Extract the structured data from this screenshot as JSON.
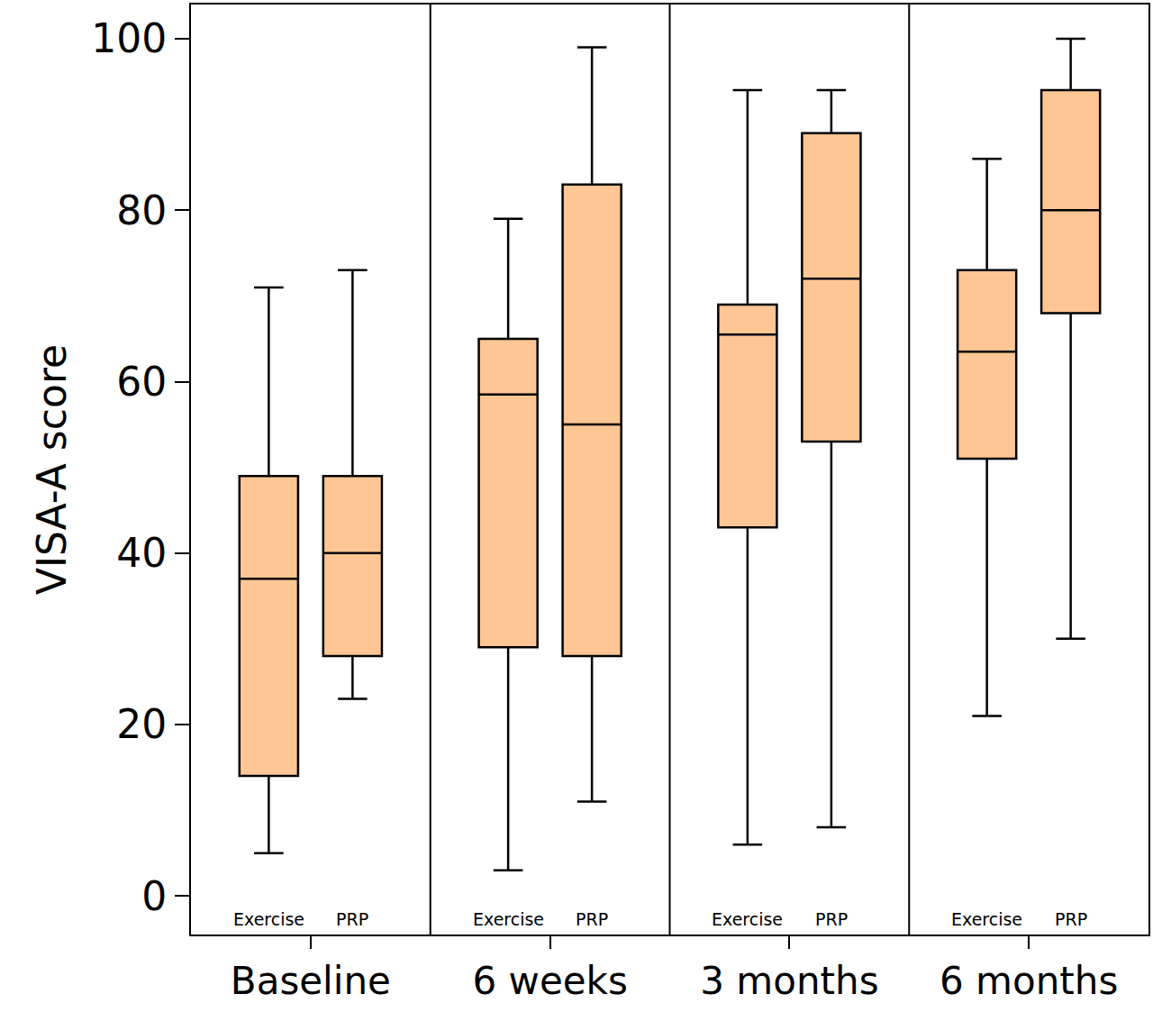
{
  "chart_data": {
    "type": "box",
    "ylabel": "VISA-A score",
    "categories": [
      "Baseline",
      "6 weeks",
      "3 months",
      "6 months"
    ],
    "series": [
      {
        "name": "Exercise",
        "color": "#fdc694",
        "min": [
          5,
          3,
          6,
          21
        ],
        "q1": [
          14,
          29,
          43,
          51
        ],
        "median": [
          37,
          58.5,
          65.5,
          63.5
        ],
        "q3": [
          49,
          65,
          69,
          73
        ],
        "max": [
          71,
          79,
          94,
          86
        ]
      },
      {
        "name": "PRP",
        "color": "#fdc694",
        "min": [
          23,
          11,
          8,
          30
        ],
        "q1": [
          28,
          28,
          53,
          68
        ],
        "median": [
          40,
          55,
          72,
          80
        ],
        "q3": [
          49,
          83,
          89,
          94
        ],
        "max": [
          73,
          99,
          94,
          100
        ]
      }
    ],
    "ylim": [
      -4.5,
      104
    ],
    "yticks": [
      0,
      20,
      40,
      60,
      80,
      100
    ],
    "grid": false
  }
}
